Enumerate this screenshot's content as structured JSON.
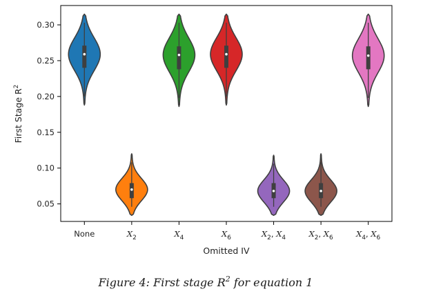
{
  "chart_data": {
    "type": "violin",
    "xlabel": "Omitted IV",
    "ylabel": "First Stage R",
    "ylabel_sup": "2",
    "ylim": [
      0.0255,
      0.327
    ],
    "y_ticks": [
      0.05,
      0.1,
      0.15,
      0.2,
      0.25,
      0.3
    ],
    "y_tick_labels": [
      "0.05",
      "0.10",
      "0.15",
      "0.20",
      "0.25",
      "0.30"
    ],
    "categories": [
      {
        "label": "None",
        "base": "None",
        "subs": []
      },
      {
        "label": "X2",
        "base": "X",
        "subs": [
          "2"
        ]
      },
      {
        "label": "X4",
        "base": "X",
        "subs": [
          "4"
        ]
      },
      {
        "label": "X6",
        "base": "X",
        "subs": [
          "6"
        ]
      },
      {
        "label": "X2, X4",
        "base": "X",
        "subs": [
          "2",
          "4"
        ]
      },
      {
        "label": "X2, X6",
        "base": "X",
        "subs": [
          "2",
          "6"
        ]
      },
      {
        "label": "X4, X6",
        "base": "X",
        "subs": [
          "4",
          "6"
        ]
      }
    ],
    "series": [
      {
        "category": "None",
        "color": "#1f77b4",
        "min": 0.188,
        "max": 0.315,
        "q1": 0.24,
        "median": 0.259,
        "q3": 0.271
      },
      {
        "category": "X2",
        "color": "#ff7f0e",
        "min": 0.034,
        "max": 0.12,
        "q1": 0.058,
        "median": 0.07,
        "q3": 0.079
      },
      {
        "category": "X4",
        "color": "#2ca02c",
        "min": 0.186,
        "max": 0.315,
        "q1": 0.238,
        "median": 0.258,
        "q3": 0.27
      },
      {
        "category": "X6",
        "color": "#d62728",
        "min": 0.188,
        "max": 0.315,
        "q1": 0.24,
        "median": 0.259,
        "q3": 0.271
      },
      {
        "category": "X2, X4",
        "color": "#9467bd",
        "min": 0.034,
        "max": 0.118,
        "q1": 0.058,
        "median": 0.068,
        "q3": 0.079
      },
      {
        "category": "X2, X6",
        "color": "#8c564b",
        "min": 0.034,
        "max": 0.12,
        "q1": 0.058,
        "median": 0.068,
        "q3": 0.079
      },
      {
        "category": "X4, X6",
        "color": "#e377c2",
        "min": 0.186,
        "max": 0.315,
        "q1": 0.238,
        "median": 0.257,
        "q3": 0.27
      }
    ]
  },
  "caption": {
    "prefix": "Figure 4: First stage ",
    "math_base": "R",
    "math_sup": "2",
    "suffix": " for equation 1"
  }
}
